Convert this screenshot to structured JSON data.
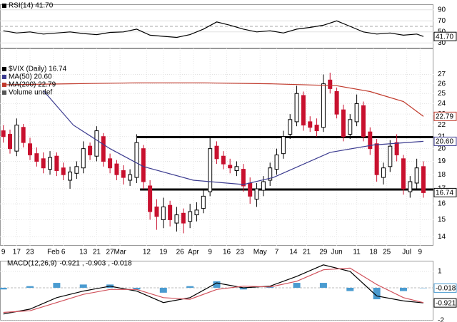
{
  "chart_data": [
    {
      "type": "line",
      "xlim": [
        -1,
        129
      ],
      "ylim": [
        20,
        100
      ],
      "yticks": [
        30,
        50,
        70,
        90
      ],
      "grid": true,
      "series": [
        {
          "name": "RSI(14) 41.70",
          "color": "#000000",
          "last_label": "41.70",
          "x": [
            0,
            4,
            8,
            12,
            16,
            20,
            24,
            28,
            32,
            36,
            40,
            44,
            48,
            52,
            56,
            60,
            64,
            68,
            72,
            76,
            80,
            84,
            88,
            92,
            96,
            100,
            104,
            108,
            112,
            116,
            120,
            124,
            126
          ],
          "values": [
            52,
            48,
            50,
            46,
            48,
            50,
            47,
            45,
            49,
            50,
            55,
            44,
            42,
            40,
            45,
            55,
            68,
            62,
            55,
            50,
            52,
            48,
            55,
            58,
            62,
            70,
            60,
            50,
            46,
            48,
            44,
            46,
            41.7
          ]
        }
      ]
    },
    {
      "type": "candlestick",
      "log_scale": true,
      "grid": true,
      "xlim": [
        -1,
        129
      ],
      "ylim": [
        13.5,
        30
      ],
      "yticks": [
        14,
        15,
        16,
        17,
        18,
        19,
        20,
        21,
        22,
        23,
        24,
        25,
        26,
        27
      ],
      "xticks": [
        {
          "value": 0,
          "label": "9"
        },
        {
          "value": 4,
          "label": "17"
        },
        {
          "value": 8,
          "label": "23"
        },
        {
          "value": 15,
          "label": "Feb"
        },
        {
          "value": 18,
          "label": "6"
        },
        {
          "value": 24,
          "label": "13"
        },
        {
          "value": 28,
          "label": "21"
        },
        {
          "value": 32,
          "label": "27"
        },
        {
          "value": 35,
          "label": "Mar"
        },
        {
          "value": 43,
          "label": "12"
        },
        {
          "value": 48,
          "label": "19"
        },
        {
          "value": 53,
          "label": "26"
        },
        {
          "value": 57,
          "label": "Apr"
        },
        {
          "value": 62,
          "label": "9"
        },
        {
          "value": 67,
          "label": "16"
        },
        {
          "value": 71,
          "label": "23"
        },
        {
          "value": 77,
          "label": "May"
        },
        {
          "value": 82,
          "label": "7"
        },
        {
          "value": 87,
          "label": "14"
        },
        {
          "value": 91,
          "label": "21"
        },
        {
          "value": 96,
          "label": "29"
        },
        {
          "value": 100,
          "label": "Jun"
        },
        {
          "value": 106,
          "label": "11"
        },
        {
          "value": 111,
          "label": "18"
        },
        {
          "value": 115,
          "label": "25"
        },
        {
          "value": 121,
          "label": "Jul"
        },
        {
          "value": 125,
          "label": "9"
        }
      ],
      "candles": {
        "name": "$VIX (Daily) 16.74",
        "up_color": "#000000",
        "down_color": "#c8102e",
        "last_label": "16.74",
        "x": [
          0,
          2,
          4,
          6,
          8,
          10,
          12,
          14,
          16,
          18,
          20,
          22,
          24,
          26,
          28,
          30,
          32,
          34,
          36,
          38,
          40,
          42,
          44,
          46,
          48,
          50,
          52,
          54,
          56,
          58,
          60,
          62,
          64,
          66,
          68,
          70,
          72,
          74,
          76,
          78,
          80,
          82,
          84,
          86,
          88,
          90,
          92,
          94,
          96,
          98,
          100,
          102,
          104,
          106,
          108,
          110,
          112,
          114,
          116,
          118,
          120,
          122,
          124,
          126
        ],
        "open": [
          21.5,
          21.2,
          19.8,
          21.8,
          20.4,
          19.6,
          19.2,
          18.4,
          19.4,
          18.5,
          17.6,
          18.1,
          18.5,
          20.2,
          19.4,
          21.0,
          19.2,
          18.8,
          18.3,
          17.6,
          17.8,
          20.0,
          17.2,
          15.8,
          15.0,
          15.9,
          14.8,
          15.4,
          14.9,
          15.3,
          15.7,
          16.8,
          20.2,
          19.4,
          18.7,
          18.3,
          18.4,
          17.4,
          16.3,
          16.9,
          17.6,
          18.4,
          19.6,
          21.2,
          22.3,
          24.8,
          22.3,
          22.0,
          21.8,
          26.4,
          25.2,
          23.4,
          21.2,
          22.3,
          23.8,
          21.4,
          20.4,
          17.8,
          18.6,
          20.5,
          19.2,
          16.8,
          17.4,
          18.6
        ],
        "high": [
          22.0,
          21.6,
          22.6,
          22.1,
          20.9,
          20.1,
          19.7,
          19.8,
          19.7,
          18.9,
          18.6,
          19.0,
          20.6,
          20.5,
          21.9,
          21.3,
          19.6,
          19.1,
          18.7,
          18.4,
          21.2,
          20.3,
          17.6,
          16.3,
          16.4,
          16.2,
          15.8,
          15.7,
          16.0,
          16.1,
          17.0,
          20.9,
          20.6,
          19.8,
          19.2,
          19.0,
          18.8,
          17.8,
          17.4,
          17.9,
          18.9,
          20.0,
          21.5,
          23.0,
          25.8,
          25.2,
          22.8,
          22.6,
          27.0,
          27.2,
          25.6,
          23.9,
          23.0,
          24.9,
          24.2,
          21.8,
          20.8,
          18.9,
          20.7,
          21.2,
          19.5,
          17.9,
          19.2,
          19.0
        ],
        "low": [
          20.5,
          19.6,
          19.4,
          20.1,
          19.1,
          18.6,
          18.1,
          18.0,
          17.9,
          17.6,
          17.0,
          17.7,
          18.1,
          19.1,
          19.0,
          18.6,
          18.1,
          17.6,
          17.3,
          17.2,
          17.4,
          17.0,
          15.0,
          14.4,
          14.5,
          14.6,
          14.3,
          14.2,
          14.5,
          14.9,
          15.4,
          16.5,
          18.8,
          18.4,
          18.1,
          17.9,
          16.8,
          16.0,
          15.8,
          16.5,
          17.2,
          18.0,
          19.2,
          20.8,
          21.9,
          21.5,
          21.4,
          21.0,
          21.4,
          25.0,
          22.6,
          20.6,
          20.8,
          21.9,
          20.6,
          19.5,
          17.5,
          17.3,
          18.2,
          19.0,
          16.6,
          16.4,
          17.0,
          16.4
        ],
        "close": [
          21.0,
          20.0,
          22.0,
          20.5,
          19.5,
          19.0,
          18.5,
          19.3,
          18.3,
          18.0,
          18.2,
          18.6,
          20.0,
          19.5,
          21.5,
          19.0,
          18.5,
          18.0,
          17.8,
          18.0,
          20.5,
          17.5,
          15.5,
          15.2,
          15.8,
          15.0,
          15.3,
          14.8,
          15.5,
          15.6,
          16.5,
          20.0,
          19.2,
          18.8,
          18.5,
          18.6,
          17.2,
          16.5,
          17.0,
          17.5,
          18.5,
          19.5,
          21.0,
          22.5,
          25.0,
          22.0,
          21.8,
          21.5,
          26.0,
          25.5,
          23.0,
          21.0,
          22.5,
          24.0,
          21.0,
          20.0,
          18.0,
          18.5,
          20.2,
          19.5,
          17.0,
          17.5,
          18.5,
          16.74
        ]
      },
      "series": [
        {
          "name": "MA(50) 20.60",
          "color": "#3b3b8f",
          "last_label": "20.60",
          "x": [
            12,
            21,
            32,
            42,
            57,
            72,
            81,
            98,
            111,
            126
          ],
          "values": [
            25.3,
            22.0,
            20.0,
            18.6,
            17.6,
            17.3,
            17.8,
            19.7,
            20.3,
            20.6
          ]
        },
        {
          "name": "MA(200) 22.79",
          "color": "#c0392b",
          "last_label": "22.79",
          "x": [
            0,
            20,
            40,
            60,
            80,
            100,
            110,
            120,
            126
          ],
          "values": [
            25.9,
            26.0,
            26.1,
            26.1,
            26.0,
            25.8,
            25.2,
            24.2,
            22.79
          ]
        }
      ],
      "note": "Volume undef",
      "hlines": [
        {
          "value": 20.95,
          "x": [
            40,
            129
          ]
        },
        {
          "value": 16.95,
          "x": [
            41,
            129
          ]
        }
      ]
    },
    {
      "type": "combo",
      "xlim": [
        -1,
        129
      ],
      "ylim": [
        -2,
        1.65
      ],
      "yticks": [
        -2,
        1
      ],
      "grid": true,
      "title": "MACD(12,26,9)",
      "series": [
        {
          "name": "-0.921",
          "kind": "line",
          "color": "#000000",
          "last_label": "-0.921",
          "x": [
            0,
            8,
            16,
            24,
            32,
            40,
            48,
            56,
            64,
            72,
            80,
            88,
            96,
            104,
            112,
            120,
            126
          ],
          "values": [
            -1.6,
            -1.3,
            -0.6,
            -0.2,
            0.1,
            -0.2,
            -0.9,
            -0.6,
            0.3,
            0.0,
            0.1,
            0.7,
            1.4,
            1.0,
            -0.5,
            -0.8,
            -0.921
          ]
        },
        {
          "name": "-0.903",
          "kind": "line",
          "color": "#d0505a",
          "x": [
            0,
            8,
            16,
            24,
            32,
            40,
            48,
            56,
            64,
            72,
            80,
            88,
            96,
            104,
            112,
            120,
            126
          ],
          "values": [
            -1.5,
            -1.4,
            -0.9,
            -0.4,
            -0.1,
            -0.1,
            -0.6,
            -0.7,
            -0.1,
            0.1,
            0.05,
            0.4,
            1.1,
            1.2,
            0.2,
            -0.6,
            -0.903
          ]
        },
        {
          "name": "-0.018",
          "kind": "bar",
          "color": "#4a9bd0",
          "last_label": "-0.018",
          "x": [
            0,
            8,
            16,
            24,
            32,
            40,
            48,
            56,
            64,
            72,
            80,
            88,
            96,
            104,
            112,
            120,
            126
          ],
          "values": [
            -0.1,
            0.1,
            0.3,
            0.2,
            0.2,
            -0.1,
            -0.3,
            0.1,
            0.4,
            -0.1,
            0.05,
            0.3,
            0.3,
            -0.2,
            -0.7,
            -0.2,
            -0.018
          ]
        }
      ]
    }
  ]
}
